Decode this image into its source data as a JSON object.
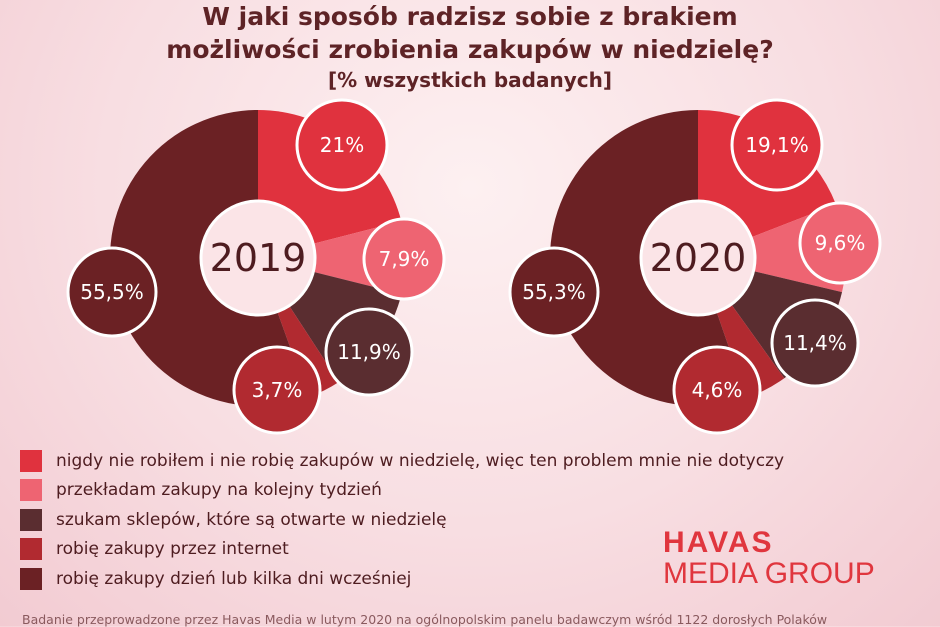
{
  "title": {
    "line1": "W jaki sposób radzisz sobie z brakiem",
    "line2": "możliwości zrobienia zakupów w niedzielę?",
    "line3": "[% wszystkich badanych]"
  },
  "colors": {
    "never": "#e0323e",
    "postpone": "#ee6472",
    "open_shops": "#5a2d30",
    "internet": "#b12a30",
    "earlier": "#6b2124"
  },
  "chart_data": [
    {
      "type": "pie",
      "center_label": "2019",
      "categories": [
        "nigdy nie robiłem i nie robię zakupów w niedzielę, więc ten problem mnie nie dotyczy",
        "przekładam zakupy na kolejny tydzień",
        "szukam sklepów, które są otwarte w niedzielę",
        "robię zakupy przez internet",
        "robię zakupy dzień lub kilka dni wcześniej"
      ],
      "values": [
        21,
        7.9,
        11.9,
        3.7,
        55.5
      ],
      "labels": [
        "21%",
        "7,9%",
        "11,9%",
        "3,7%",
        "55,5%"
      ]
    },
    {
      "type": "pie",
      "center_label": "2020",
      "categories": [
        "nigdy nie robiłem i nie robię zakupów w niedzielę, więc ten problem mnie nie dotyczy",
        "przekładam zakupy na kolejny tydzień",
        "szukam sklepów, które są otwarte w niedzielę",
        "robię zakupy przez internet",
        "robię zakupy dzień lub kilka dni wcześniej"
      ],
      "values": [
        19.1,
        9.6,
        11.4,
        4.6,
        55.3
      ],
      "labels": [
        "19,1%",
        "9,6%",
        "11,4%",
        "4,6%",
        "55,3%"
      ]
    }
  ],
  "legend": [
    {
      "label": "nigdy nie robiłem i nie robię zakupów w niedzielę, więc ten problem mnie nie dotyczy",
      "color": "#e0323e"
    },
    {
      "label": "przekładam zakupy na kolejny tydzień",
      "color": "#ee6472"
    },
    {
      "label": "szukam sklepów, które są otwarte w niedzielę",
      "color": "#5a2d30"
    },
    {
      "label": "robię zakupy przez internet",
      "color": "#b12a30"
    },
    {
      "label": "robię zakupy dzień lub kilka dni wcześniej",
      "color": "#6b2124"
    }
  ],
  "logo": {
    "line1": "HAVAS",
    "line2": "MEDIA GROUP"
  },
  "footnote": "Badanie przeprowadzone przez Havas Media w lutym 2020 na ogólnopolskim panelu badawczym wśród 1122 dorosłych Polaków"
}
